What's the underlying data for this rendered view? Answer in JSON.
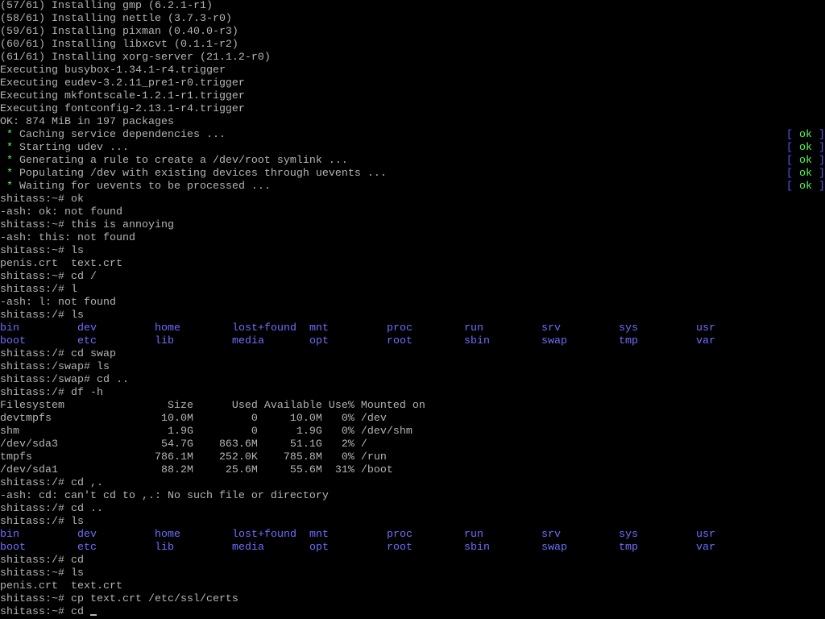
{
  "colors": {
    "text": "#b4b4b4",
    "green": "#55ff55",
    "bracket": "#5a5aff",
    "directory": "#6e6eff",
    "background": "#000000"
  },
  "status_ok": {
    "open": "[",
    "label": " ok ",
    "close": "]"
  },
  "lines": [
    {
      "t": "(57/61) Installing gmp (6.2.1-r1)"
    },
    {
      "t": "(58/61) Installing nettle (3.7.3-r0)"
    },
    {
      "t": "(59/61) Installing pixman (0.40.0-r3)"
    },
    {
      "t": "(60/61) Installing libxcvt (0.1.1-r2)"
    },
    {
      "t": "(61/61) Installing xorg-server (21.1.2-r0)"
    },
    {
      "t": "Executing busybox-1.34.1-r4.trigger"
    },
    {
      "t": "Executing eudev-3.2.11_pre1-r0.trigger"
    },
    {
      "t": "Executing mkfontscale-1.2.1-r1.trigger"
    },
    {
      "t": "Executing fontconfig-2.13.1-r4.trigger"
    },
    {
      "t": "OK: 874 MiB in 197 packages"
    },
    {
      "service": "Caching service dependencies ..."
    },
    {
      "service": "Starting udev ..."
    },
    {
      "service": "Generating a rule to create a /dev/root symlink ..."
    },
    {
      "service": "Populating /dev with existing devices through uevents ..."
    },
    {
      "service": "Waiting for uevents to be processed ..."
    },
    {
      "t": "shitass:~# ok"
    },
    {
      "t": "-ash: ok: not found"
    },
    {
      "t": "shitass:~# this is annoying"
    },
    {
      "t": "-ash: this: not found"
    },
    {
      "t": "shitass:~# ls"
    },
    {
      "t": "penis.crt  text.crt"
    },
    {
      "t": "shitass:~# cd /"
    },
    {
      "t": "shitass:/# l"
    },
    {
      "t": "-ash: l: not found"
    },
    {
      "t": "shitass:/# ls"
    },
    {
      "dirs": [
        "bin",
        "dev",
        "home",
        "lost+found",
        "mnt",
        "proc",
        "run",
        "srv",
        "sys",
        "usr"
      ]
    },
    {
      "dirs": [
        "boot",
        "etc",
        "lib",
        "media",
        "opt",
        "root",
        "sbin",
        "swap",
        "tmp",
        "var"
      ]
    },
    {
      "t": "shitass:/# cd swap"
    },
    {
      "t": "shitass:/swap# ls"
    },
    {
      "t": "shitass:/swap# cd .."
    },
    {
      "t": "shitass:/# df -h"
    },
    {
      "t": "Filesystem                Size      Used Available Use% Mounted on"
    },
    {
      "t": "devtmpfs                 10.0M         0     10.0M   0% /dev"
    },
    {
      "t": "shm                       1.9G         0      1.9G   0% /dev/shm"
    },
    {
      "t": "/dev/sda3                54.7G    863.6M     51.1G   2% /"
    },
    {
      "t": "tmpfs                   786.1M    252.0K    785.8M   0% /run"
    },
    {
      "t": "/dev/sda1                88.2M     25.6M     55.6M  31% /boot"
    },
    {
      "t": "shitass:/# cd ,."
    },
    {
      "t": "-ash: cd: can't cd to ,.: No such file or directory"
    },
    {
      "t": "shitass:/# cd .."
    },
    {
      "t": "shitass:/# ls"
    },
    {
      "dirs": [
        "bin",
        "dev",
        "home",
        "lost+found",
        "mnt",
        "proc",
        "run",
        "srv",
        "sys",
        "usr"
      ]
    },
    {
      "dirs": [
        "boot",
        "etc",
        "lib",
        "media",
        "opt",
        "root",
        "sbin",
        "swap",
        "tmp",
        "var"
      ]
    },
    {
      "t": "shitass:/# cd"
    },
    {
      "t": "shitass:~# ls"
    },
    {
      "t": "penis.crt  text.crt"
    },
    {
      "t": "shitass:~# cp text.crt /etc/ssl/certs"
    },
    {
      "t": "shitass:~# cd ",
      "cursor": true
    }
  ]
}
